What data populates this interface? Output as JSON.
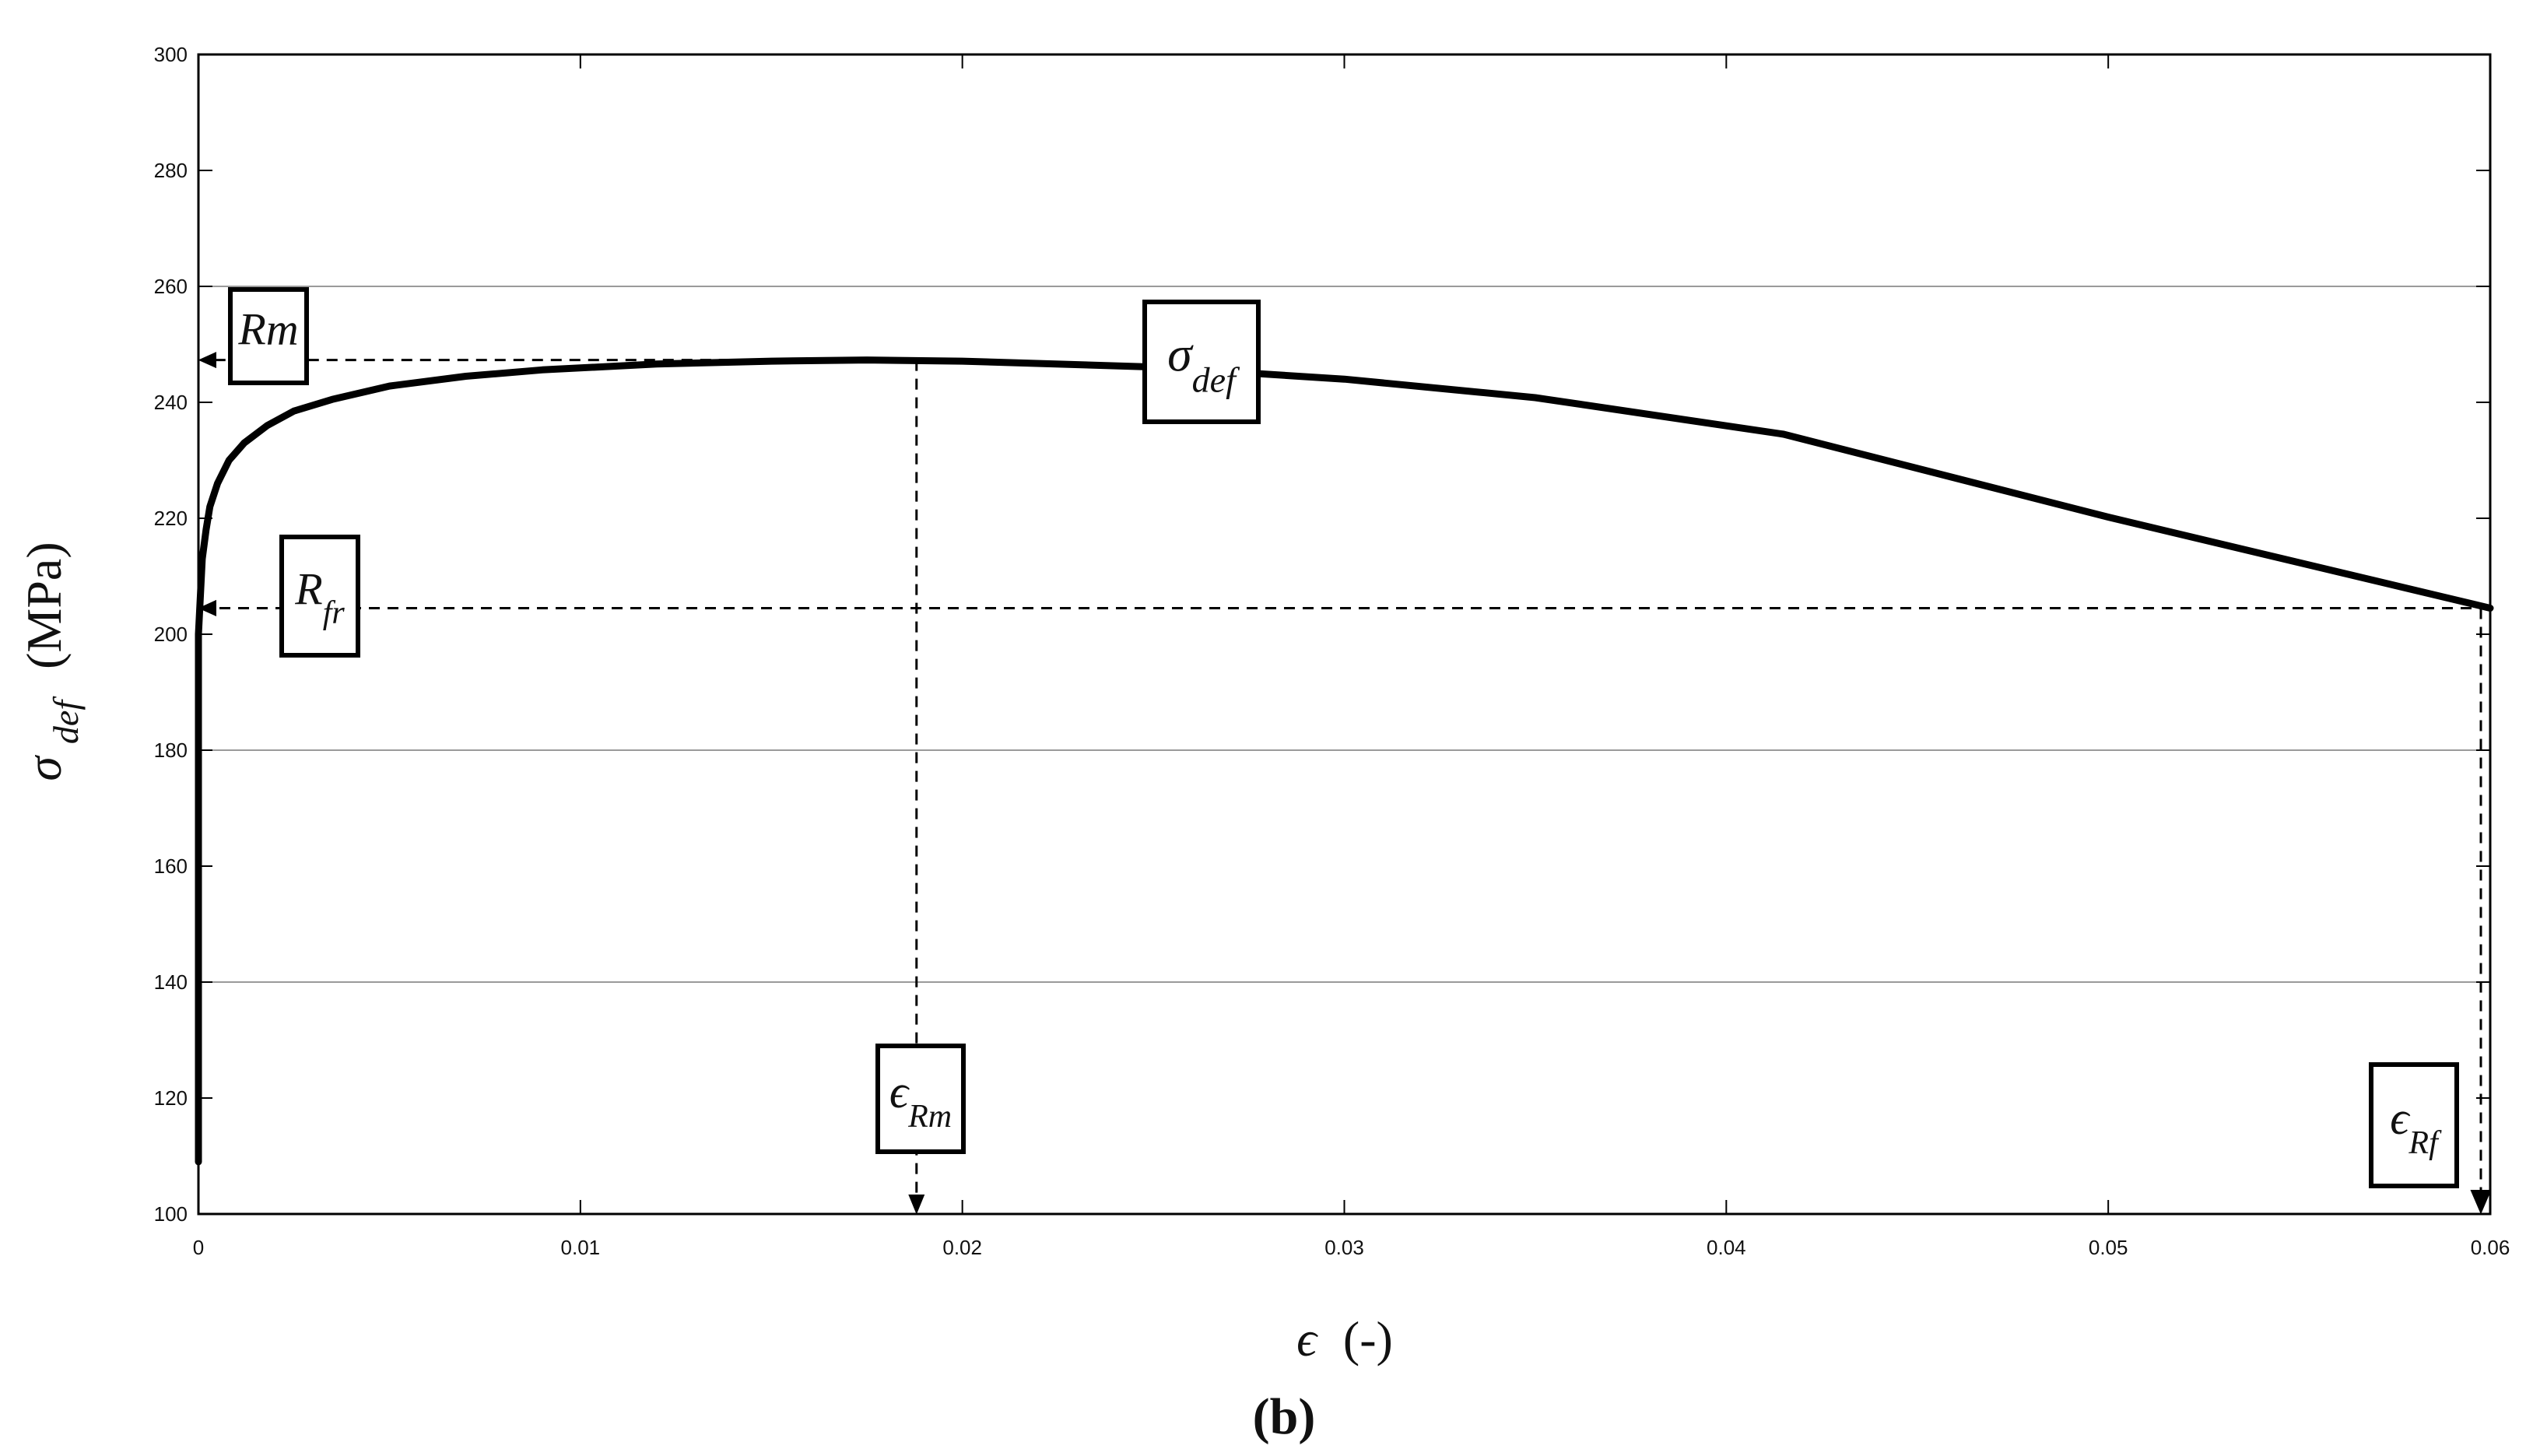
{
  "chart_data": {
    "type": "line",
    "panel_label": "(b)",
    "xlabel": {
      "symbol": "ϵ",
      "unit": "(-)"
    },
    "ylabel": {
      "symbol": "σ",
      "subscript": "def",
      "unit": "(MPa)"
    },
    "xlim": [
      0,
      0.06
    ],
    "ylim": [
      100,
      300
    ],
    "x_ticks": [
      0,
      0.01,
      0.02,
      0.03,
      0.04,
      0.05,
      0.06
    ],
    "x_tick_labels": [
      "0",
      "0.01",
      "0.02",
      "0.03",
      "0.04",
      "0.05",
      "0.06"
    ],
    "y_ticks": [
      100,
      120,
      140,
      160,
      180,
      200,
      220,
      240,
      260,
      280,
      300
    ],
    "y_tick_labels": [
      "100",
      "120",
      "140",
      "160",
      "180",
      "200",
      "220",
      "240",
      "260",
      "280",
      "300"
    ],
    "grid_y": [
      140,
      180,
      260
    ],
    "series": [
      {
        "name": "σ def",
        "x": [
          0,
          0,
          0.0001,
          0.0002,
          0.0003,
          0.0005,
          0.0008,
          0.0012,
          0.0018,
          0.0025,
          0.0035,
          0.005,
          0.007,
          0.009,
          0.012,
          0.015,
          0.0175,
          0.02,
          0.025,
          0.03,
          0.035,
          0.0415,
          0.05,
          0.06
        ],
        "y": [
          109,
          200,
          213,
          218,
          222,
          226,
          230,
          233,
          236,
          238.5,
          240.5,
          242.8,
          244.5,
          245.6,
          246.6,
          247.1,
          247.3,
          247.1,
          246.1,
          244,
          240.8,
          234.5,
          220.2,
          204.5
        ]
      }
    ],
    "annotations": {
      "rm": {
        "main": "Rm",
        "sub": "",
        "value_y": 247.3
      },
      "rfr": {
        "main": "R",
        "sub": "fr",
        "value_y": 204.5
      },
      "eps_rm": {
        "main": "ϵ",
        "sub": "Rm",
        "value_x": 0.0188
      },
      "eps_rf": {
        "main": "ϵ",
        "sub": "Rf",
        "value_x": 0.06
      },
      "sigma_def": {
        "main": "σ",
        "sub": "def"
      }
    }
  }
}
